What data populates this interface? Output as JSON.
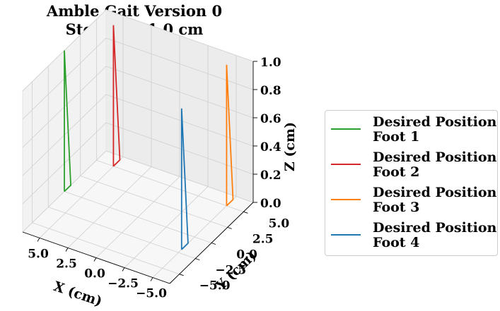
{
  "chart_data": {
    "type": "line3d",
    "title": [
      "Amble Gait Version 0",
      "Step Size 1.0 cm"
    ],
    "xlabel": "X (cm)",
    "ylabel": "Y (cm)",
    "zlabel": "Z (cm)",
    "xlim": [
      -6.5,
      6.5
    ],
    "ylim": [
      -6.5,
      6.5
    ],
    "zlim": [
      0,
      1.0
    ],
    "xticks": [
      "−5.0",
      "−2.5",
      "0.0",
      "2.5",
      "5.0"
    ],
    "yticks": [
      "−5.0",
      "−2.5",
      "0.0",
      "2.5",
      "5.0"
    ],
    "zticks": [
      "0.0",
      "0.2",
      "0.4",
      "0.6",
      "0.8",
      "1.0"
    ],
    "grid": true,
    "legend_position": "right",
    "series": [
      {
        "name": "Desired Position Foot 1",
        "color": "#2ca02c",
        "points": [
          [
            6.5,
            0.0,
            0.0
          ],
          [
            6.5,
            1.0,
            0.0
          ],
          [
            6.5,
            0.0,
            1.0
          ],
          [
            6.5,
            0.0,
            0.0
          ]
        ]
      },
      {
        "name": "Desired Position Foot 2",
        "color": "#d62728",
        "points": [
          [
            5.0,
            5.0,
            0.0
          ],
          [
            5.0,
            6.0,
            0.0
          ],
          [
            5.0,
            5.0,
            1.0
          ],
          [
            5.0,
            5.0,
            0.0
          ]
        ]
      },
      {
        "name": "Desired Position Foot 3",
        "color": "#ff7f0e",
        "points": [
          [
            -5.0,
            5.0,
            0.0
          ],
          [
            -5.0,
            6.0,
            0.0
          ],
          [
            -5.0,
            5.0,
            1.0
          ],
          [
            -5.0,
            5.0,
            0.0
          ]
        ]
      },
      {
        "name": "Desired Position Foot 4",
        "color": "#1f77b4",
        "points": [
          [
            -5.0,
            -2.0,
            0.0
          ],
          [
            -5.0,
            -1.0,
            0.0
          ],
          [
            -5.0,
            -2.0,
            1.0
          ],
          [
            -5.0,
            -2.0,
            0.0
          ]
        ]
      }
    ]
  },
  "legend": {
    "entries": [
      {
        "line1": "Desired Position",
        "line2": "Foot 1",
        "color": "#2ca02c"
      },
      {
        "line1": "Desired Position",
        "line2": "Foot 2",
        "color": "#d62728"
      },
      {
        "line1": "Desired Position",
        "line2": "Foot 3",
        "color": "#ff7f0e"
      },
      {
        "line1": "Desired Position",
        "line2": "Foot 4",
        "color": "#1f77b4"
      }
    ]
  }
}
